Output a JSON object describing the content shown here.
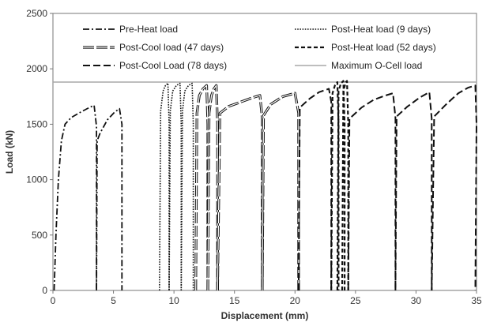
{
  "chart_data": {
    "type": "line",
    "title": "",
    "xlabel": "Displacement (mm)",
    "ylabel": "Load (kN)",
    "xlim": [
      0,
      35
    ],
    "ylim": [
      0,
      2500
    ],
    "xticks": [
      "0",
      "5",
      "10",
      "15",
      "20",
      "25",
      "30",
      "35"
    ],
    "yticks": [
      "0",
      "500",
      "1000",
      "1500",
      "2000",
      "2500"
    ],
    "grid": false,
    "legend_position": "top",
    "reference_line": {
      "name": "Maximum O-Cell load",
      "y": 1880,
      "color": "#a8a8a8"
    },
    "series": [
      {
        "name": "Pre-Heat load",
        "style": "dashdot",
        "color": "#111111",
        "segments": [
          [
            [
              0.1,
              0
            ],
            [
              0.25,
              500
            ],
            [
              0.45,
              1000
            ],
            [
              0.7,
              1350
            ],
            [
              1.0,
              1500
            ],
            [
              1.5,
              1560
            ],
            [
              2.3,
              1610
            ],
            [
              3.0,
              1650
            ],
            [
              3.4,
              1670
            ],
            [
              3.6,
              1480
            ],
            [
              3.6,
              0
            ]
          ],
          [
            [
              3.6,
              0
            ],
            [
              3.65,
              1350
            ],
            [
              3.9,
              1420
            ],
            [
              4.5,
              1540
            ],
            [
              5.1,
              1610
            ],
            [
              5.5,
              1640
            ],
            [
              5.7,
              1500
            ],
            [
              5.7,
              0
            ]
          ]
        ]
      },
      {
        "name": "Post-Heat load (9 days)",
        "style": "dotted",
        "color": "#111111",
        "segments": [
          [
            [
              8.8,
              0
            ],
            [
              8.9,
              1620
            ],
            [
              9.1,
              1800
            ],
            [
              9.3,
              1850
            ],
            [
              9.5,
              1870
            ],
            [
              9.6,
              1500
            ],
            [
              9.6,
              0
            ]
          ],
          [
            [
              9.6,
              0
            ],
            [
              9.7,
              1620
            ],
            [
              9.9,
              1800
            ],
            [
              10.2,
              1850
            ],
            [
              10.5,
              1870
            ],
            [
              10.6,
              1500
            ],
            [
              10.6,
              0
            ]
          ],
          [
            [
              10.6,
              0
            ],
            [
              10.7,
              1620
            ],
            [
              10.9,
              1800
            ],
            [
              11.2,
              1850
            ],
            [
              11.5,
              1870
            ],
            [
              11.6,
              1500
            ],
            [
              11.6,
              0
            ]
          ]
        ]
      },
      {
        "name": "Post-Cool load (47 days)",
        "style": "hollow",
        "color": "#111111",
        "segments": [
          [
            [
              11.8,
              0
            ],
            [
              11.9,
              1600
            ],
            [
              12.1,
              1760
            ],
            [
              12.4,
              1820
            ],
            [
              12.7,
              1850
            ],
            [
              12.8,
              1500
            ],
            [
              12.8,
              0
            ]
          ],
          [
            [
              12.8,
              0
            ],
            [
              12.9,
              1600
            ],
            [
              13.1,
              1760
            ],
            [
              13.3,
              1820
            ],
            [
              13.5,
              1850
            ],
            [
              13.6,
              1500
            ],
            [
              13.6,
              0
            ]
          ],
          [
            [
              13.6,
              0
            ],
            [
              13.8,
              1600
            ],
            [
              14.5,
              1660
            ],
            [
              15.5,
              1700
            ],
            [
              16.5,
              1740
            ],
            [
              17.1,
              1760
            ],
            [
              17.3,
              1550
            ],
            [
              17.3,
              0
            ]
          ],
          [
            [
              17.3,
              0
            ],
            [
              17.4,
              1580
            ],
            [
              18.0,
              1680
            ],
            [
              19.0,
              1750
            ],
            [
              20.0,
              1780
            ],
            [
              20.3,
              1600
            ],
            [
              20.3,
              0
            ]
          ]
        ]
      },
      {
        "name": "Post-Heat load (52 days)",
        "style": "dashed",
        "color": "#111111",
        "segments": [
          [
            [
              23.0,
              0
            ],
            [
              23.1,
              1780
            ],
            [
              23.3,
              1850
            ],
            [
              23.5,
              1880
            ],
            [
              23.6,
              1500
            ],
            [
              23.6,
              0
            ]
          ],
          [
            [
              23.5,
              0
            ],
            [
              23.6,
              1800
            ],
            [
              23.8,
              1870
            ],
            [
              24.0,
              1890
            ],
            [
              24.1,
              1500
            ],
            [
              24.1,
              0
            ]
          ],
          [
            [
              23.9,
              0
            ],
            [
              24.0,
              1800
            ],
            [
              24.2,
              1880
            ],
            [
              24.3,
              1890
            ],
            [
              24.4,
              1500
            ],
            [
              24.4,
              0
            ]
          ]
        ]
      },
      {
        "name": "Post-Cool Load (78 days)",
        "style": "longdash",
        "color": "#111111",
        "segments": [
          [
            [
              20.3,
              0
            ],
            [
              20.4,
              1650
            ],
            [
              21.2,
              1730
            ],
            [
              22.0,
              1790
            ],
            [
              22.8,
              1820
            ],
            [
              23.0,
              1700
            ],
            [
              23.0,
              0
            ]
          ],
          [
            [
              24.4,
              0
            ],
            [
              24.5,
              1550
            ],
            [
              25.5,
              1650
            ],
            [
              26.5,
              1720
            ],
            [
              27.5,
              1760
            ],
            [
              28.1,
              1780
            ],
            [
              28.3,
              1560
            ],
            [
              28.3,
              0
            ]
          ],
          [
            [
              28.3,
              0
            ],
            [
              28.4,
              1570
            ],
            [
              29.3,
              1660
            ],
            [
              30.3,
              1740
            ],
            [
              31.1,
              1790
            ],
            [
              31.3,
              1550
            ],
            [
              31.3,
              0
            ]
          ],
          [
            [
              31.3,
              0
            ],
            [
              31.5,
              1570
            ],
            [
              32.5,
              1680
            ],
            [
              33.5,
              1780
            ],
            [
              34.3,
              1830
            ],
            [
              34.9,
              1850
            ],
            [
              35.0,
              1500
            ],
            [
              34.9,
              0
            ]
          ]
        ]
      }
    ]
  }
}
